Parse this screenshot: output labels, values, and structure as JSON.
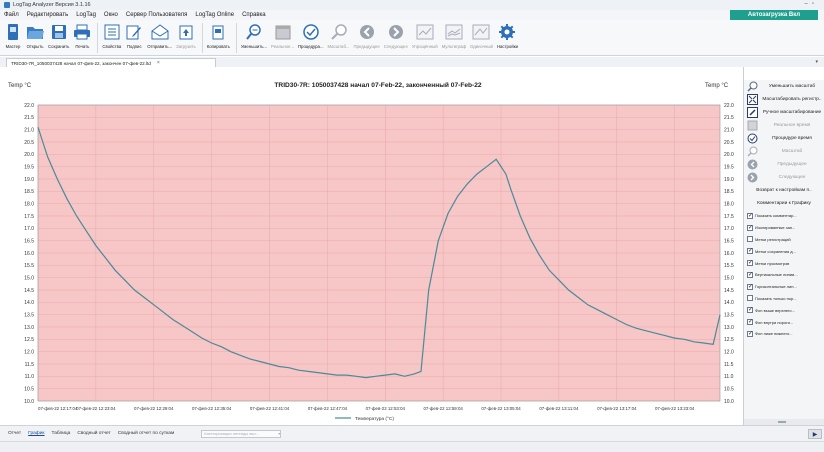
{
  "window": {
    "title": "LogTag Analyzer  Версия 3.1.16"
  },
  "menu": [
    "Файл",
    "Редактировать",
    "LogTag",
    "Окно",
    "Сервер Пользователя",
    "LogTag Online",
    "Справка"
  ],
  "autoload_label": "Автозагрузка Вкл",
  "toolbar": [
    {
      "label": "Мастер",
      "icon": "wizard-icon",
      "enabled": true
    },
    {
      "label": "Открыть",
      "icon": "open-folder-icon",
      "enabled": true
    },
    {
      "label": "Сохранить",
      "icon": "save-icon",
      "enabled": true
    },
    {
      "label": "Печать",
      "icon": "print-icon",
      "enabled": true
    },
    {
      "label": "Свойства",
      "icon": "properties-icon",
      "enabled": true
    },
    {
      "label": "Подпис",
      "icon": "sign-icon",
      "enabled": true
    },
    {
      "label": "Отправить...",
      "icon": "send-icon",
      "enabled": true
    },
    {
      "label": "Загрузить",
      "icon": "upload-icon",
      "enabled": false
    },
    {
      "label": "Копировать",
      "icon": "copy-icon",
      "enabled": true
    },
    {
      "label": "Уменьшить...",
      "icon": "zoom-out-icon",
      "enabled": true
    },
    {
      "label": "Реальное...",
      "icon": "calendar-icon",
      "enabled": false
    },
    {
      "label": "Процедура...",
      "icon": "check-circle-icon",
      "enabled": true
    },
    {
      "label": "Масштаб...",
      "icon": "zoom-icon",
      "enabled": false
    },
    {
      "label": "Предыдущее",
      "icon": "previous-icon",
      "enabled": false
    },
    {
      "label": "Следующее",
      "icon": "next-icon",
      "enabled": false
    },
    {
      "label": "Упрощённый",
      "icon": "simple-chart-icon",
      "enabled": false
    },
    {
      "label": "Мультиграф",
      "icon": "multigraph-icon",
      "enabled": false
    },
    {
      "label": "Одиночный",
      "icon": "single-chart-icon",
      "enabled": false
    },
    {
      "label": "Настройки",
      "icon": "settings-icon",
      "enabled": true
    }
  ],
  "document_tab": {
    "label": "TRID30-7R_1050037428 начал 07-фев-22, закончен 07-фев-22.ltd",
    "close": "×"
  },
  "right_panel": {
    "actions": [
      {
        "label": "Уменьшить масштаб",
        "icon": "zoom-out-icon",
        "enabled": true
      },
      {
        "label": "Масштабировать регистр..",
        "icon": "fit-icon",
        "enabled": true
      },
      {
        "label": "Ручное масштабирование",
        "icon": "manual-scale-icon",
        "enabled": true
      },
      {
        "label": "Реальное время",
        "icon": "calendar-icon",
        "enabled": false
      },
      {
        "label": "Процедуре время",
        "icon": "check-circle-icon",
        "enabled": true
      },
      {
        "label": "Масштаб",
        "icon": "zoom-icon",
        "enabled": false
      },
      {
        "label": "Предыдущее",
        "icon": "previous-icon",
        "enabled": false
      },
      {
        "label": "Следующее",
        "icon": "next-icon",
        "enabled": false
      }
    ],
    "reset_label": "Возврат к настройкам п..",
    "comments_label": "Комментарии к Графику",
    "checkboxes": [
      {
        "label": "Показать комментар...",
        "checked": true
      },
      {
        "label": "Изолированные зап...",
        "checked": true
      },
      {
        "label": "Метки регистраций",
        "checked": false
      },
      {
        "label": "Метки сохранения д...",
        "checked": true
      },
      {
        "label": "Метки просмотров",
        "checked": true
      },
      {
        "label": "Вертикальные линии...",
        "checked": true
      },
      {
        "label": "Горизонтальные лин...",
        "checked": true
      },
      {
        "label": "Показать только пор...",
        "checked": false
      },
      {
        "label": "Фон выше верхнего...",
        "checked": true
      },
      {
        "label": "Фон внутри пороги...",
        "checked": true
      },
      {
        "label": "Фон ниже нижнего...",
        "checked": true
      }
    ]
  },
  "bottom_tabs": [
    "Отчет",
    "График",
    "Таблица",
    "Сводный отчет",
    "Сводный отчет по суткам"
  ],
  "active_bottom_tab": "График",
  "categorize_placeholder": "Категоризация легенды вкл...",
  "colors": {
    "plot_background": "#f7c6c6",
    "line": "#4a8a9a",
    "accent": "#1fa08f"
  },
  "chart_data": {
    "type": "line",
    "title": "TRID30-7R: 1050037428 начал 07-Feb-22, закончен­ный 07-Feb-22",
    "ylabel_left": "Temp °C",
    "ylabel_right": "Temp °C",
    "ylim": [
      10.0,
      22.0
    ],
    "yticks": [
      "10.0",
      "10.5",
      "11.0",
      "11.5",
      "12.0",
      "12.5",
      "13.0",
      "13.5",
      "14.0",
      "14.5",
      "15.0",
      "15.5",
      "16.0",
      "16.5",
      "17.0",
      "17.5",
      "18.0",
      "18.5",
      "19.0",
      "19.5",
      "20.0",
      "20.5",
      "21.0",
      "21.5",
      "22.0"
    ],
    "xticks": [
      "07-фев-22 12:17:04",
      "07-фев-22 12:23:04",
      "07-фев-22 12:29:04",
      "07-фев-22 12:35:04",
      "07-фев-22 12:41:04",
      "07-фев-22 12:47:04",
      "07-фев-22 12:53:04",
      "07-фев-22 12:59:04",
      "07-фев-22 13:05:04",
      "07-фев-22 13:11:04",
      "07-фев-22 13:17:04",
      "07-фев-22 13:23:04"
    ],
    "grid": true,
    "legend": "bottom-center",
    "series": [
      {
        "name": "Температура (°C)",
        "x_minutes": [
          0,
          0.5,
          1,
          2,
          3,
          4,
          5,
          6,
          7,
          8,
          9,
          10,
          11,
          12,
          13,
          14,
          15,
          16,
          17,
          18,
          19,
          20,
          21,
          22,
          23,
          24,
          25,
          26,
          27,
          28,
          29,
          30,
          31,
          32,
          33,
          34,
          35,
          36,
          37,
          38,
          39,
          39.7,
          40.5,
          41.5,
          42.5,
          43.5,
          44.5,
          45.5,
          46.5,
          47.5,
          48.5,
          49,
          50,
          51,
          52,
          53,
          54,
          55,
          56,
          57,
          58,
          59,
          60,
          61,
          62,
          63,
          64,
          65,
          66,
          67,
          68,
          69,
          70,
          70.7
        ],
        "values": [
          21.1,
          20.5,
          19.9,
          19.0,
          18.2,
          17.5,
          16.9,
          16.3,
          15.8,
          15.3,
          14.9,
          14.5,
          14.2,
          13.9,
          13.6,
          13.3,
          13.05,
          12.8,
          12.55,
          12.35,
          12.2,
          12.0,
          11.85,
          11.7,
          11.6,
          11.5,
          11.4,
          11.35,
          11.25,
          11.2,
          11.15,
          11.1,
          11.05,
          11.05,
          11.0,
          10.95,
          11.0,
          11.05,
          11.1,
          11.0,
          11.1,
          11.2,
          14.5,
          16.5,
          17.6,
          18.3,
          18.8,
          19.2,
          19.5,
          19.8,
          19.2,
          18.6,
          17.5,
          16.6,
          15.9,
          15.3,
          14.9,
          14.5,
          14.2,
          13.9,
          13.7,
          13.5,
          13.3,
          13.1,
          12.95,
          12.85,
          12.75,
          12.65,
          12.55,
          12.5,
          12.4,
          12.35,
          12.3,
          13.5
        ]
      }
    ]
  }
}
